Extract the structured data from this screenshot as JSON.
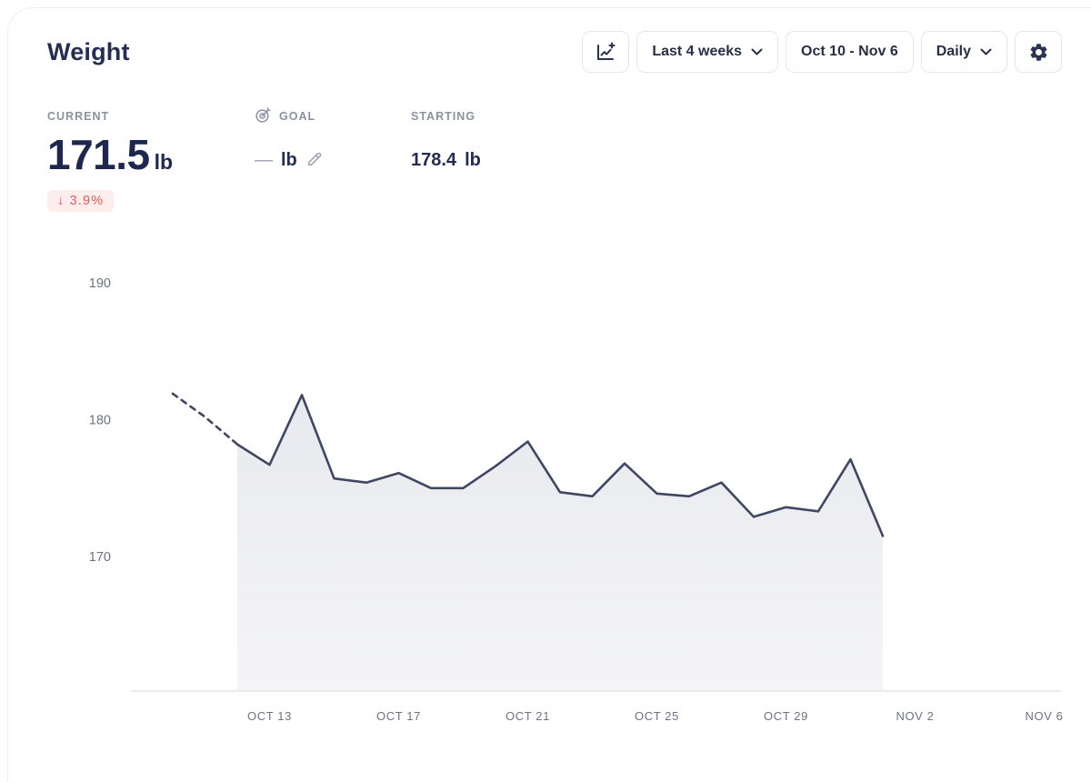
{
  "header": {
    "title": "Weight"
  },
  "toolbar": {
    "add_data_icon": "chart-plus",
    "range_label": "Last 4 weeks",
    "date_range_label": "Oct 10 - Nov 6",
    "granularity_label": "Daily",
    "chevron_icon": "chevron-down",
    "settings_icon": "gear"
  },
  "stats": {
    "current": {
      "label": "CURRENT",
      "value": "171.5",
      "unit": "lb",
      "change_arrow": "↓",
      "change_value": "3.9%"
    },
    "goal": {
      "label": "GOAL",
      "value": "—",
      "unit": "lb",
      "target_icon": "target",
      "edit_icon": "pencil"
    },
    "starting": {
      "label": "STARTING",
      "value": "178.4",
      "unit": "lb"
    }
  },
  "colors": {
    "navy_text": "#1d2750",
    "line": "#404763",
    "area_fill_top": "#e8e9ee",
    "area_fill_bottom": "#f5f5f8",
    "badge_bg": "#fdeded",
    "badge_text": "#e25c5c",
    "border": "#e4e7ed",
    "muted_label": "#8b91a0",
    "axis_text": "#6d7280"
  },
  "chart_data": {
    "type": "area",
    "title": "Weight over last 4 weeks (lb)",
    "x": [
      "Oct 10",
      "Oct 11",
      "Oct 12",
      "Oct 13",
      "Oct 14",
      "Oct 15",
      "Oct 16",
      "Oct 17",
      "Oct 18",
      "Oct 19",
      "Oct 20",
      "Oct 21",
      "Oct 22",
      "Oct 23",
      "Oct 24",
      "Oct 25",
      "Oct 26",
      "Oct 27",
      "Oct 28",
      "Oct 29",
      "Oct 30",
      "Oct 31",
      "Nov 1"
    ],
    "values": [
      181.9,
      180.2,
      178.2,
      176.7,
      181.8,
      175.7,
      175.4,
      176.1,
      175.0,
      175.0,
      176.6,
      178.4,
      174.7,
      174.4,
      176.8,
      174.6,
      174.4,
      175.4,
      172.9,
      173.6,
      173.3,
      177.1,
      171.5
    ],
    "dashed_until_index": 2,
    "fill_from_index": 2,
    "line_color": "#404763",
    "grid": false,
    "legend": false,
    "x_axis": {
      "start": "Oct 10",
      "end": "Nov 6",
      "total_days": 27,
      "tick_labels": [
        "OCT 13",
        "OCT 17",
        "OCT 21",
        "OCT 25",
        "OCT 29",
        "NOV 2",
        "NOV 6"
      ],
      "tick_day_offsets": [
        3,
        7,
        11,
        15,
        19,
        23,
        27
      ]
    },
    "y_axis": {
      "unit": "lb",
      "tick_labels": [
        "190",
        "180",
        "170"
      ],
      "tick_values": [
        190,
        180,
        170
      ],
      "baseline_value": 160.2
    }
  }
}
